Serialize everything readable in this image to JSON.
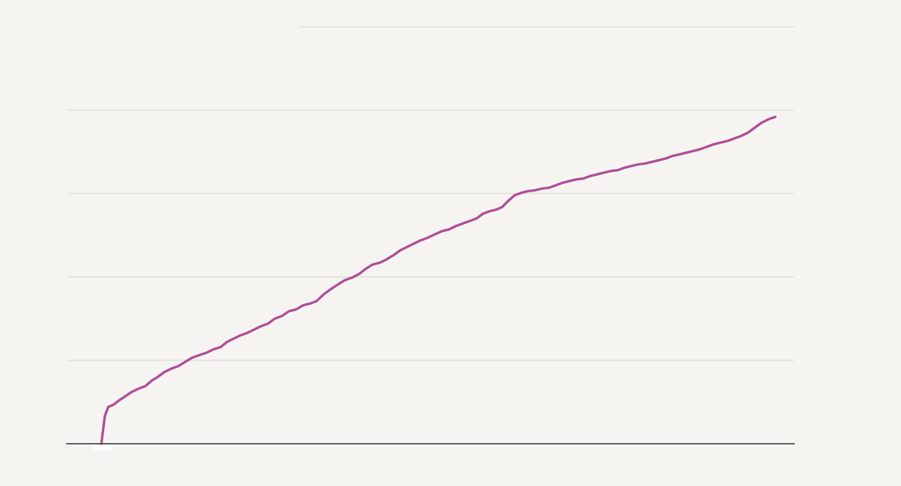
{
  "colors": {
    "background": "#f5f4f1",
    "gridline": "#e4e2de",
    "baseline": "#5a5a5a",
    "series": "#b04e97",
    "marker": "#ffffff"
  },
  "chart_data": {
    "type": "line",
    "title": "",
    "xlabel": "",
    "ylabel": "",
    "grid": true,
    "legend": "none",
    "xlim": [
      0,
      100
    ],
    "ylim": [
      0,
      5
    ],
    "yticks": [
      0,
      1,
      2,
      3,
      4,
      5
    ],
    "series": [
      {
        "values": [
          [
            0.0,
            0.0
          ],
          [
            0.5,
            0.33
          ],
          [
            1.0,
            0.44
          ],
          [
            1.8,
            0.47
          ],
          [
            2.6,
            0.52
          ],
          [
            3.5,
            0.57
          ],
          [
            4.4,
            0.62
          ],
          [
            5.4,
            0.66
          ],
          [
            6.4,
            0.69
          ],
          [
            7.4,
            0.76
          ],
          [
            8.2,
            0.8
          ],
          [
            9.2,
            0.86
          ],
          [
            10.2,
            0.9
          ],
          [
            11.2,
            0.93
          ],
          [
            12.2,
            0.98
          ],
          [
            13.2,
            1.03
          ],
          [
            14.2,
            1.06
          ],
          [
            15.3,
            1.09
          ],
          [
            16.3,
            1.13
          ],
          [
            17.4,
            1.16
          ],
          [
            18.3,
            1.22
          ],
          [
            19.3,
            1.26
          ],
          [
            20.3,
            1.3
          ],
          [
            21.3,
            1.33
          ],
          [
            22.3,
            1.37
          ],
          [
            23.3,
            1.41
          ],
          [
            24.3,
            1.44
          ],
          [
            25.3,
            1.5
          ],
          [
            26.3,
            1.53
          ],
          [
            27.4,
            1.59
          ],
          [
            28.4,
            1.61
          ],
          [
            29.4,
            1.66
          ],
          [
            30.4,
            1.68
          ],
          [
            31.4,
            1.71
          ],
          [
            32.4,
            1.79
          ],
          [
            33.4,
            1.85
          ],
          [
            34.5,
            1.91
          ],
          [
            35.5,
            1.96
          ],
          [
            36.5,
            1.99
          ],
          [
            37.5,
            2.03
          ],
          [
            38.6,
            2.1
          ],
          [
            39.6,
            2.15
          ],
          [
            40.6,
            2.17
          ],
          [
            41.6,
            2.21
          ],
          [
            42.6,
            2.26
          ],
          [
            43.6,
            2.32
          ],
          [
            44.6,
            2.36
          ],
          [
            45.6,
            2.4
          ],
          [
            46.6,
            2.44
          ],
          [
            47.6,
            2.47
          ],
          [
            48.6,
            2.51
          ],
          [
            49.7,
            2.55
          ],
          [
            50.7,
            2.57
          ],
          [
            51.7,
            2.61
          ],
          [
            52.7,
            2.64
          ],
          [
            53.7,
            2.67
          ],
          [
            54.7,
            2.7
          ],
          [
            55.7,
            2.76
          ],
          [
            56.7,
            2.79
          ],
          [
            57.7,
            2.81
          ],
          [
            58.5,
            2.84
          ],
          [
            59.3,
            2.91
          ],
          [
            60.3,
            2.98
          ],
          [
            61.3,
            3.01
          ],
          [
            62.3,
            3.03
          ],
          [
            63.3,
            3.04
          ],
          [
            64.3,
            3.06
          ],
          [
            65.3,
            3.07
          ],
          [
            66.3,
            3.1
          ],
          [
            67.3,
            3.13
          ],
          [
            68.3,
            3.15
          ],
          [
            69.3,
            3.17
          ],
          [
            70.3,
            3.18
          ],
          [
            71.3,
            3.21
          ],
          [
            72.3,
            3.23
          ],
          [
            73.3,
            3.25
          ],
          [
            74.3,
            3.27
          ],
          [
            75.3,
            3.28
          ],
          [
            76.3,
            3.31
          ],
          [
            77.3,
            3.33
          ],
          [
            78.3,
            3.35
          ],
          [
            79.3,
            3.36
          ],
          [
            80.3,
            3.38
          ],
          [
            81.3,
            3.4
          ],
          [
            82.3,
            3.42
          ],
          [
            83.3,
            3.45
          ],
          [
            84.3,
            3.47
          ],
          [
            85.3,
            3.49
          ],
          [
            86.3,
            3.51
          ],
          [
            87.3,
            3.53
          ],
          [
            88.3,
            3.56
          ],
          [
            89.3,
            3.59
          ],
          [
            90.3,
            3.61
          ],
          [
            91.3,
            3.63
          ],
          [
            92.3,
            3.66
          ],
          [
            93.3,
            3.69
          ],
          [
            94.3,
            3.73
          ],
          [
            95.3,
            3.79
          ],
          [
            96.3,
            3.85
          ],
          [
            97.3,
            3.89
          ],
          [
            98.3,
            3.92
          ]
        ]
      }
    ]
  }
}
